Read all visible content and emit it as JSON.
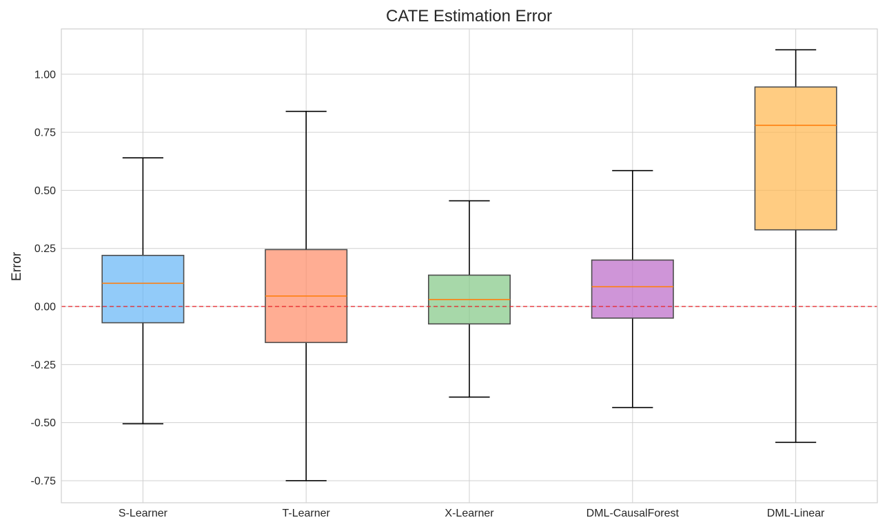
{
  "chart_data": {
    "type": "box",
    "title": "CATE Estimation Error",
    "xlabel": "",
    "ylabel": "Error",
    "ylim": [
      -0.845,
      1.195
    ],
    "yticks": [
      -0.75,
      -0.5,
      -0.25,
      0.0,
      0.25,
      0.5,
      0.75,
      1.0
    ],
    "ytick_labels": [
      "-0.75",
      "-0.50",
      "-0.25",
      "0.00",
      "0.25",
      "0.50",
      "0.75",
      "1.00"
    ],
    "grid": true,
    "reference_line": {
      "y": 0.0,
      "style": "dashed",
      "color": "#e8252a"
    },
    "median_color": "#ff7f0e",
    "categories": [
      "S-Learner",
      "T-Learner",
      "X-Learner",
      "DML-CausalForest",
      "DML-Linear"
    ],
    "boxes": [
      {
        "label": "S-Learner",
        "whislo": -0.505,
        "q1": -0.07,
        "med": 0.1,
        "q3": 0.22,
        "whishi": 0.64,
        "color": "#64b5f6"
      },
      {
        "label": "T-Learner",
        "whislo": -0.75,
        "q1": -0.155,
        "med": 0.045,
        "q3": 0.245,
        "whishi": 0.84,
        "color": "#ff8a65"
      },
      {
        "label": "X-Learner",
        "whislo": -0.39,
        "q1": -0.075,
        "med": 0.03,
        "q3": 0.135,
        "whishi": 0.455,
        "color": "#81c784"
      },
      {
        "label": "DML-CausalForest",
        "whislo": -0.435,
        "q1": -0.05,
        "med": 0.085,
        "q3": 0.2,
        "whishi": 0.585,
        "color": "#ba68c8"
      },
      {
        "label": "DML-Linear",
        "whislo": -0.585,
        "q1": 0.33,
        "med": 0.78,
        "q3": 0.945,
        "whishi": 1.105,
        "color": "#ffb74d"
      }
    ]
  }
}
